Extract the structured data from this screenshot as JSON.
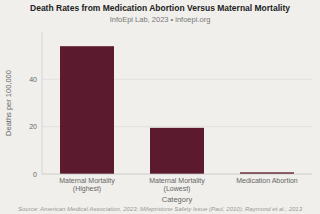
{
  "chart_data": {
    "type": "bar",
    "title": "Death Rates from Medication Abortion Versus Maternal Mortality",
    "subtitle": "InfoEpi Lab, 2023  •  infoepi.org",
    "categories": [
      "Maternal Mortality (Highest)",
      "Maternal Mortality (Lowest)",
      "Medication Abortion"
    ],
    "values": [
      54,
      19.5,
      0.7
    ],
    "color": "#5c1a2e",
    "xlabel": "Category",
    "ylabel": "Deaths per 100,000",
    "ylim": [
      0,
      60
    ],
    "yticks": [
      0,
      20,
      40
    ],
    "grid": true,
    "source": "Source: American Medical Association, 2023; Mifepristone Safety Issue (Paul, 2010); Raymond et al., 2013"
  }
}
